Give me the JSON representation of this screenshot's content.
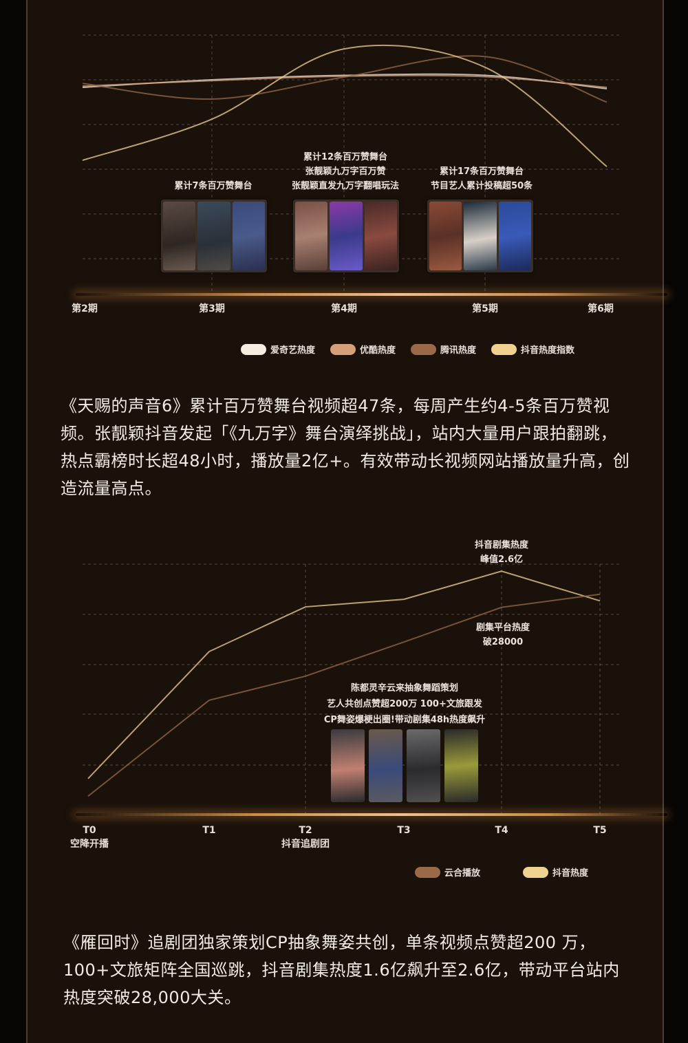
{
  "chart_data": [
    {
      "type": "line",
      "smooth": true,
      "categories": [
        "第2期",
        "第3期",
        "第4期",
        "第5期",
        "第6期"
      ],
      "ylim": [
        0,
        6
      ],
      "y_tick_labels": false,
      "grid": true,
      "legend_position": "bottom-right",
      "series": [
        {
          "name": "爱奇艺热度",
          "color": "#f5ede0",
          "values": [
            4.83,
            5.0,
            5.1,
            5.1,
            4.8
          ]
        },
        {
          "name": "优酷热度",
          "color": "#d4a07a",
          "values": [
            4.86,
            4.98,
            5.08,
            5.07,
            4.83
          ]
        },
        {
          "name": "腾讯热度",
          "color": "#9a6a48",
          "values": [
            4.92,
            4.57,
            5.06,
            5.52,
            4.5
          ]
        },
        {
          "name": "抖音热度指数",
          "color": "#f0d290",
          "values": [
            3.2,
            4.12,
            5.69,
            5.28,
            3.06
          ]
        }
      ],
      "annotations": [
        {
          "category": "第3期",
          "lines": [
            "累计7条百万赞舞台"
          ]
        },
        {
          "category": "第4期",
          "lines": [
            "累计12条百万赞舞台",
            "张靓颖九万字百万赞",
            "张靓颖直发九万字翻唱玩法"
          ]
        },
        {
          "category": "第5期",
          "lines": [
            "累计17条百万赞舞台",
            "节目艺人累计投稿超50条"
          ]
        }
      ]
    },
    {
      "type": "line",
      "smooth": false,
      "categories": [
        "T0",
        "T1",
        "T2",
        "T3",
        "T4",
        "T5"
      ],
      "category_sublabels": [
        "空降开播",
        "",
        "抖音追剧团",
        "",
        "",
        ""
      ],
      "ylim": [
        0,
        5
      ],
      "y_tick_labels": false,
      "grid": true,
      "legend_position": "bottom-right",
      "series": [
        {
          "name": "抖音热度",
          "color": "#f0d290",
          "values": [
            0.73,
            3.26,
            4.15,
            4.3,
            4.86,
            4.27
          ]
        },
        {
          "name": "云合播放",
          "color": "#9a6a48",
          "values": [
            0.38,
            2.29,
            2.77,
            3.45,
            4.14,
            4.4
          ]
        }
      ],
      "annotations": [
        {
          "category": "T4",
          "lines": [
            "抖音剧集热度",
            "峰值2.6亿"
          ]
        },
        {
          "category": "T4",
          "lines": [
            "剧集平台热度",
            "破28000"
          ]
        },
        {
          "category": "T3",
          "lines": [
            "陈都灵辛云来抽象舞蹈策划",
            "艺人共创点赞超200万  100+文旅跟发",
            "CP舞姿爆梗出圈!带动剧集48h热度飙升"
          ]
        }
      ]
    }
  ],
  "paragraphs": [
    "《天赐的声音6》累计百万赞舞台视频超47条，每周产生约4-5条百万赞视频。张靓颖抖音发起「《九万字》舞台演绎挑战」，站内大量用户跟拍翻跳，热点霸榜时长超48小时，播放量2亿+。有效带动长视频网站播放量升高，创造流量高点。",
    "《雁回时》追剧团独家策划CP抽象舞姿共创，单条视频点赞超200 万，100+文旅矩阵全国巡跳，抖音剧集热度1.6亿飙升至2.6亿，带动平台站内热度突破28,000大关。"
  ],
  "colors": {
    "panel_bg": "#1a110a",
    "outer_bg": "#070504",
    "glow": "#f0c090"
  }
}
